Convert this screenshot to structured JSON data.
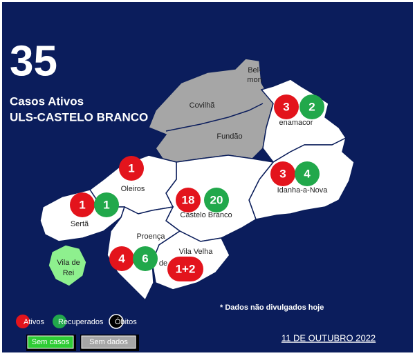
{
  "header": {
    "total": 35,
    "label": "Casos Ativos",
    "region": "ULS-CASTELO BRANCO"
  },
  "fragments": [
    "Bel-",
    "mon"
  ],
  "regions": {
    "covilha": {
      "name": "Covilhã"
    },
    "fundao": {
      "name": "Fundão"
    },
    "penamacor": {
      "name": "enamacor",
      "ativos": 3,
      "recuperados": 2
    },
    "idanha": {
      "name": "Idanha-a-Nova",
      "ativos": 3,
      "recuperados": 4
    },
    "castelo_branco": {
      "name": "Castelo Branco",
      "ativos": 18,
      "recuperados": 20
    },
    "oleiros": {
      "name": "Oleiros",
      "ativos": 1
    },
    "serta": {
      "name": "Sertã",
      "ativos": 1,
      "recuperados": 1
    },
    "proenca": {
      "name": "Proença",
      "ativos": 4,
      "recuperados": 6
    },
    "vila_velha": {
      "name": "Vila Velha",
      "name2": "de",
      "ativos": "1+2"
    },
    "vila_de_rei": {
      "name": "Vila de",
      "name2": "Rei"
    }
  },
  "note": "* Dados não divulgados hoje",
  "legend": {
    "ativos": "Ativos",
    "recuperados": "Recuperados",
    "obitos": "Óbitos",
    "sem_casos": "Sem casos",
    "sem_dados": "Sem dados"
  },
  "date": "11 DE OUTUBRO 2022"
}
